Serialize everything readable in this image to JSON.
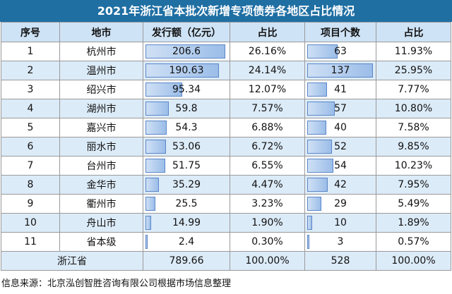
{
  "title": "2021年浙江省本批次新增专项债券各地区占比情况",
  "headers": [
    "序号",
    "地市",
    "发行额（亿元）",
    "占比",
    "项目个数",
    "占比"
  ],
  "rows": [
    {
      "idx": "1",
      "city": "杭州市",
      "amount": "206.6",
      "amount_share": "26.16%",
      "projects": "63",
      "project_share": "11.93%",
      "amount_num": 206.6,
      "projects_num": 63
    },
    {
      "idx": "2",
      "city": "温州市",
      "amount": "190.63",
      "amount_share": "24.14%",
      "projects": "137",
      "project_share": "25.95%",
      "amount_num": 190.63,
      "projects_num": 137
    },
    {
      "idx": "3",
      "city": "绍兴市",
      "amount": "95.34",
      "amount_share": "12.07%",
      "projects": "41",
      "project_share": "7.77%",
      "amount_num": 95.34,
      "projects_num": 41
    },
    {
      "idx": "4",
      "city": "湖州市",
      "amount": "59.8",
      "amount_share": "7.57%",
      "projects": "57",
      "project_share": "10.80%",
      "amount_num": 59.8,
      "projects_num": 57
    },
    {
      "idx": "5",
      "city": "嘉兴市",
      "amount": "54.3",
      "amount_share": "6.88%",
      "projects": "40",
      "project_share": "7.58%",
      "amount_num": 54.3,
      "projects_num": 40
    },
    {
      "idx": "6",
      "city": "丽水市",
      "amount": "53.06",
      "amount_share": "6.72%",
      "projects": "52",
      "project_share": "9.85%",
      "amount_num": 53.06,
      "projects_num": 52
    },
    {
      "idx": "7",
      "city": "台州市",
      "amount": "51.75",
      "amount_share": "6.55%",
      "projects": "54",
      "project_share": "10.23%",
      "amount_num": 51.75,
      "projects_num": 54
    },
    {
      "idx": "8",
      "city": "金华市",
      "amount": "35.29",
      "amount_share": "4.47%",
      "projects": "42",
      "project_share": "7.95%",
      "amount_num": 35.29,
      "projects_num": 42
    },
    {
      "idx": "9",
      "city": "衢州市",
      "amount": "25.5",
      "amount_share": "3.23%",
      "projects": "29",
      "project_share": "5.49%",
      "amount_num": 25.5,
      "projects_num": 29
    },
    {
      "idx": "10",
      "city": "舟山市",
      "amount": "14.99",
      "amount_share": "1.90%",
      "projects": "10",
      "project_share": "1.89%",
      "amount_num": 14.99,
      "projects_num": 10
    },
    {
      "idx": "11",
      "city": "省本级",
      "amount": "2.4",
      "amount_share": "0.30%",
      "projects": "3",
      "project_share": "0.57%",
      "amount_num": 2.4,
      "projects_num": 3
    }
  ],
  "total": {
    "label": "浙江省",
    "amount": "789.66",
    "amount_share": "100.00%",
    "projects": "528",
    "project_share": "100.00%"
  },
  "footer": "信息来源：北京泓创智胜咨询有限公司根据市场信息整理",
  "colors": {
    "header_bg": "#1f6fa3",
    "thead_bg": "#cfe3f6",
    "stripe": "#dcebf8",
    "bar_border": "#5a86c8"
  }
}
